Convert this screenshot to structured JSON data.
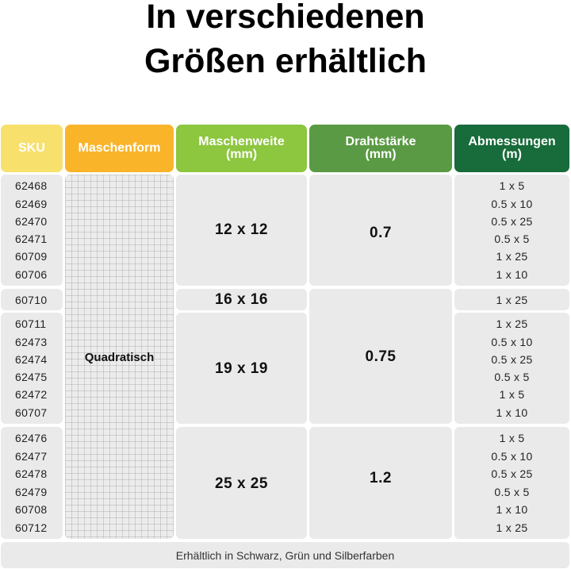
{
  "heading": {
    "line1": "In verschiedenen",
    "line2": "Größen erhältlich"
  },
  "colors": {
    "sku": "#f8e06c",
    "maschenform": "#f9b42a",
    "maschenweite": "#8dc63f",
    "drahtstaerke": "#5a9a44",
    "abmessungen": "#186b3a"
  },
  "headers": {
    "sku": "SKU",
    "maschenform": "Maschenform",
    "maschenweite": "Maschenweite\n(mm)",
    "drahtstaerke": "Drahtstärke\n(mm)",
    "abmessungen": "Abmessungen\n(m)"
  },
  "maschenform_value": "Quadratisch",
  "groups": [
    {
      "skus": [
        "62468",
        "62469",
        "62470",
        "62471",
        "60709",
        "60706"
      ],
      "maschenweite": "12 x 12",
      "dimensions": [
        "1 x 5",
        "0.5 x 10",
        "0.5 x 25",
        "0.5 x 5",
        "1 x 25",
        "1 x 10"
      ]
    },
    {
      "skus": [
        "60710"
      ],
      "maschenweite": "16 x 16",
      "dimensions": [
        "1 x 25"
      ]
    },
    {
      "skus": [
        "60711",
        "62473",
        "62474",
        "62475",
        "62472",
        "60707"
      ],
      "maschenweite": "19 x 19",
      "dimensions": [
        "1 x 25",
        "0.5 x 10",
        "0.5 x 25",
        "0.5 x 5",
        "1 x 5",
        "1 x 10"
      ]
    },
    {
      "skus": [
        "62476",
        "62477",
        "62478",
        "62479",
        "60708",
        "60712"
      ],
      "maschenweite": "25 x 25",
      "dimensions": [
        "1 x 5",
        "0.5 x 10",
        "0.5 x 25",
        "0.5 x 5",
        "1 x 10",
        "1 x 25"
      ]
    }
  ],
  "drahtstaerke": [
    "0.7",
    "0.75",
    "1.2"
  ],
  "footer": "Erhältlich in Schwarz, Grün und Silberfarben"
}
